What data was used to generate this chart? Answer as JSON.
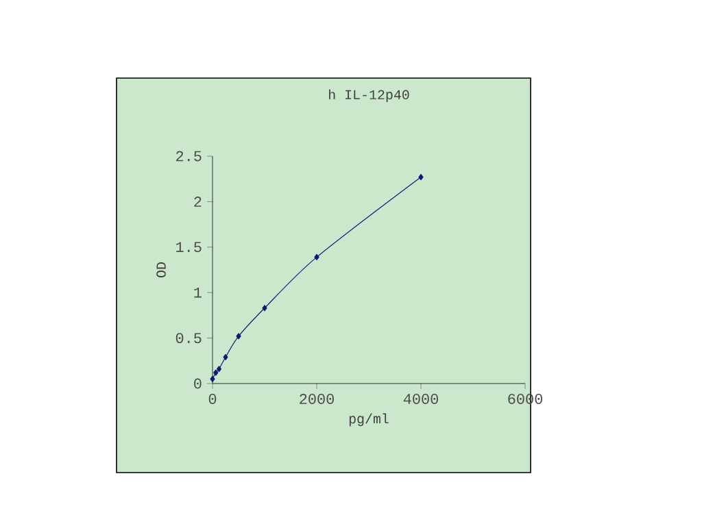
{
  "chart_data": {
    "type": "line",
    "title": "h IL-12p40",
    "xlabel": "pg/ml",
    "ylabel": "OD",
    "x": [
      0,
      62.5,
      125,
      250,
      500,
      1000,
      2000,
      4000
    ],
    "series": [
      {
        "color": "#0a1a7a",
        "values": [
          0.05,
          0.12,
          0.16,
          0.29,
          0.52,
          0.83,
          1.39,
          2.27
        ]
      }
    ],
    "xlim": [
      0,
      6000
    ],
    "ylim": [
      0,
      2.5
    ],
    "xticks": [
      0,
      2000,
      4000,
      6000
    ],
    "yticks": [
      0,
      0.5,
      1,
      1.5,
      2,
      2.5
    ],
    "marker": "diamond",
    "line_style": "solid"
  }
}
